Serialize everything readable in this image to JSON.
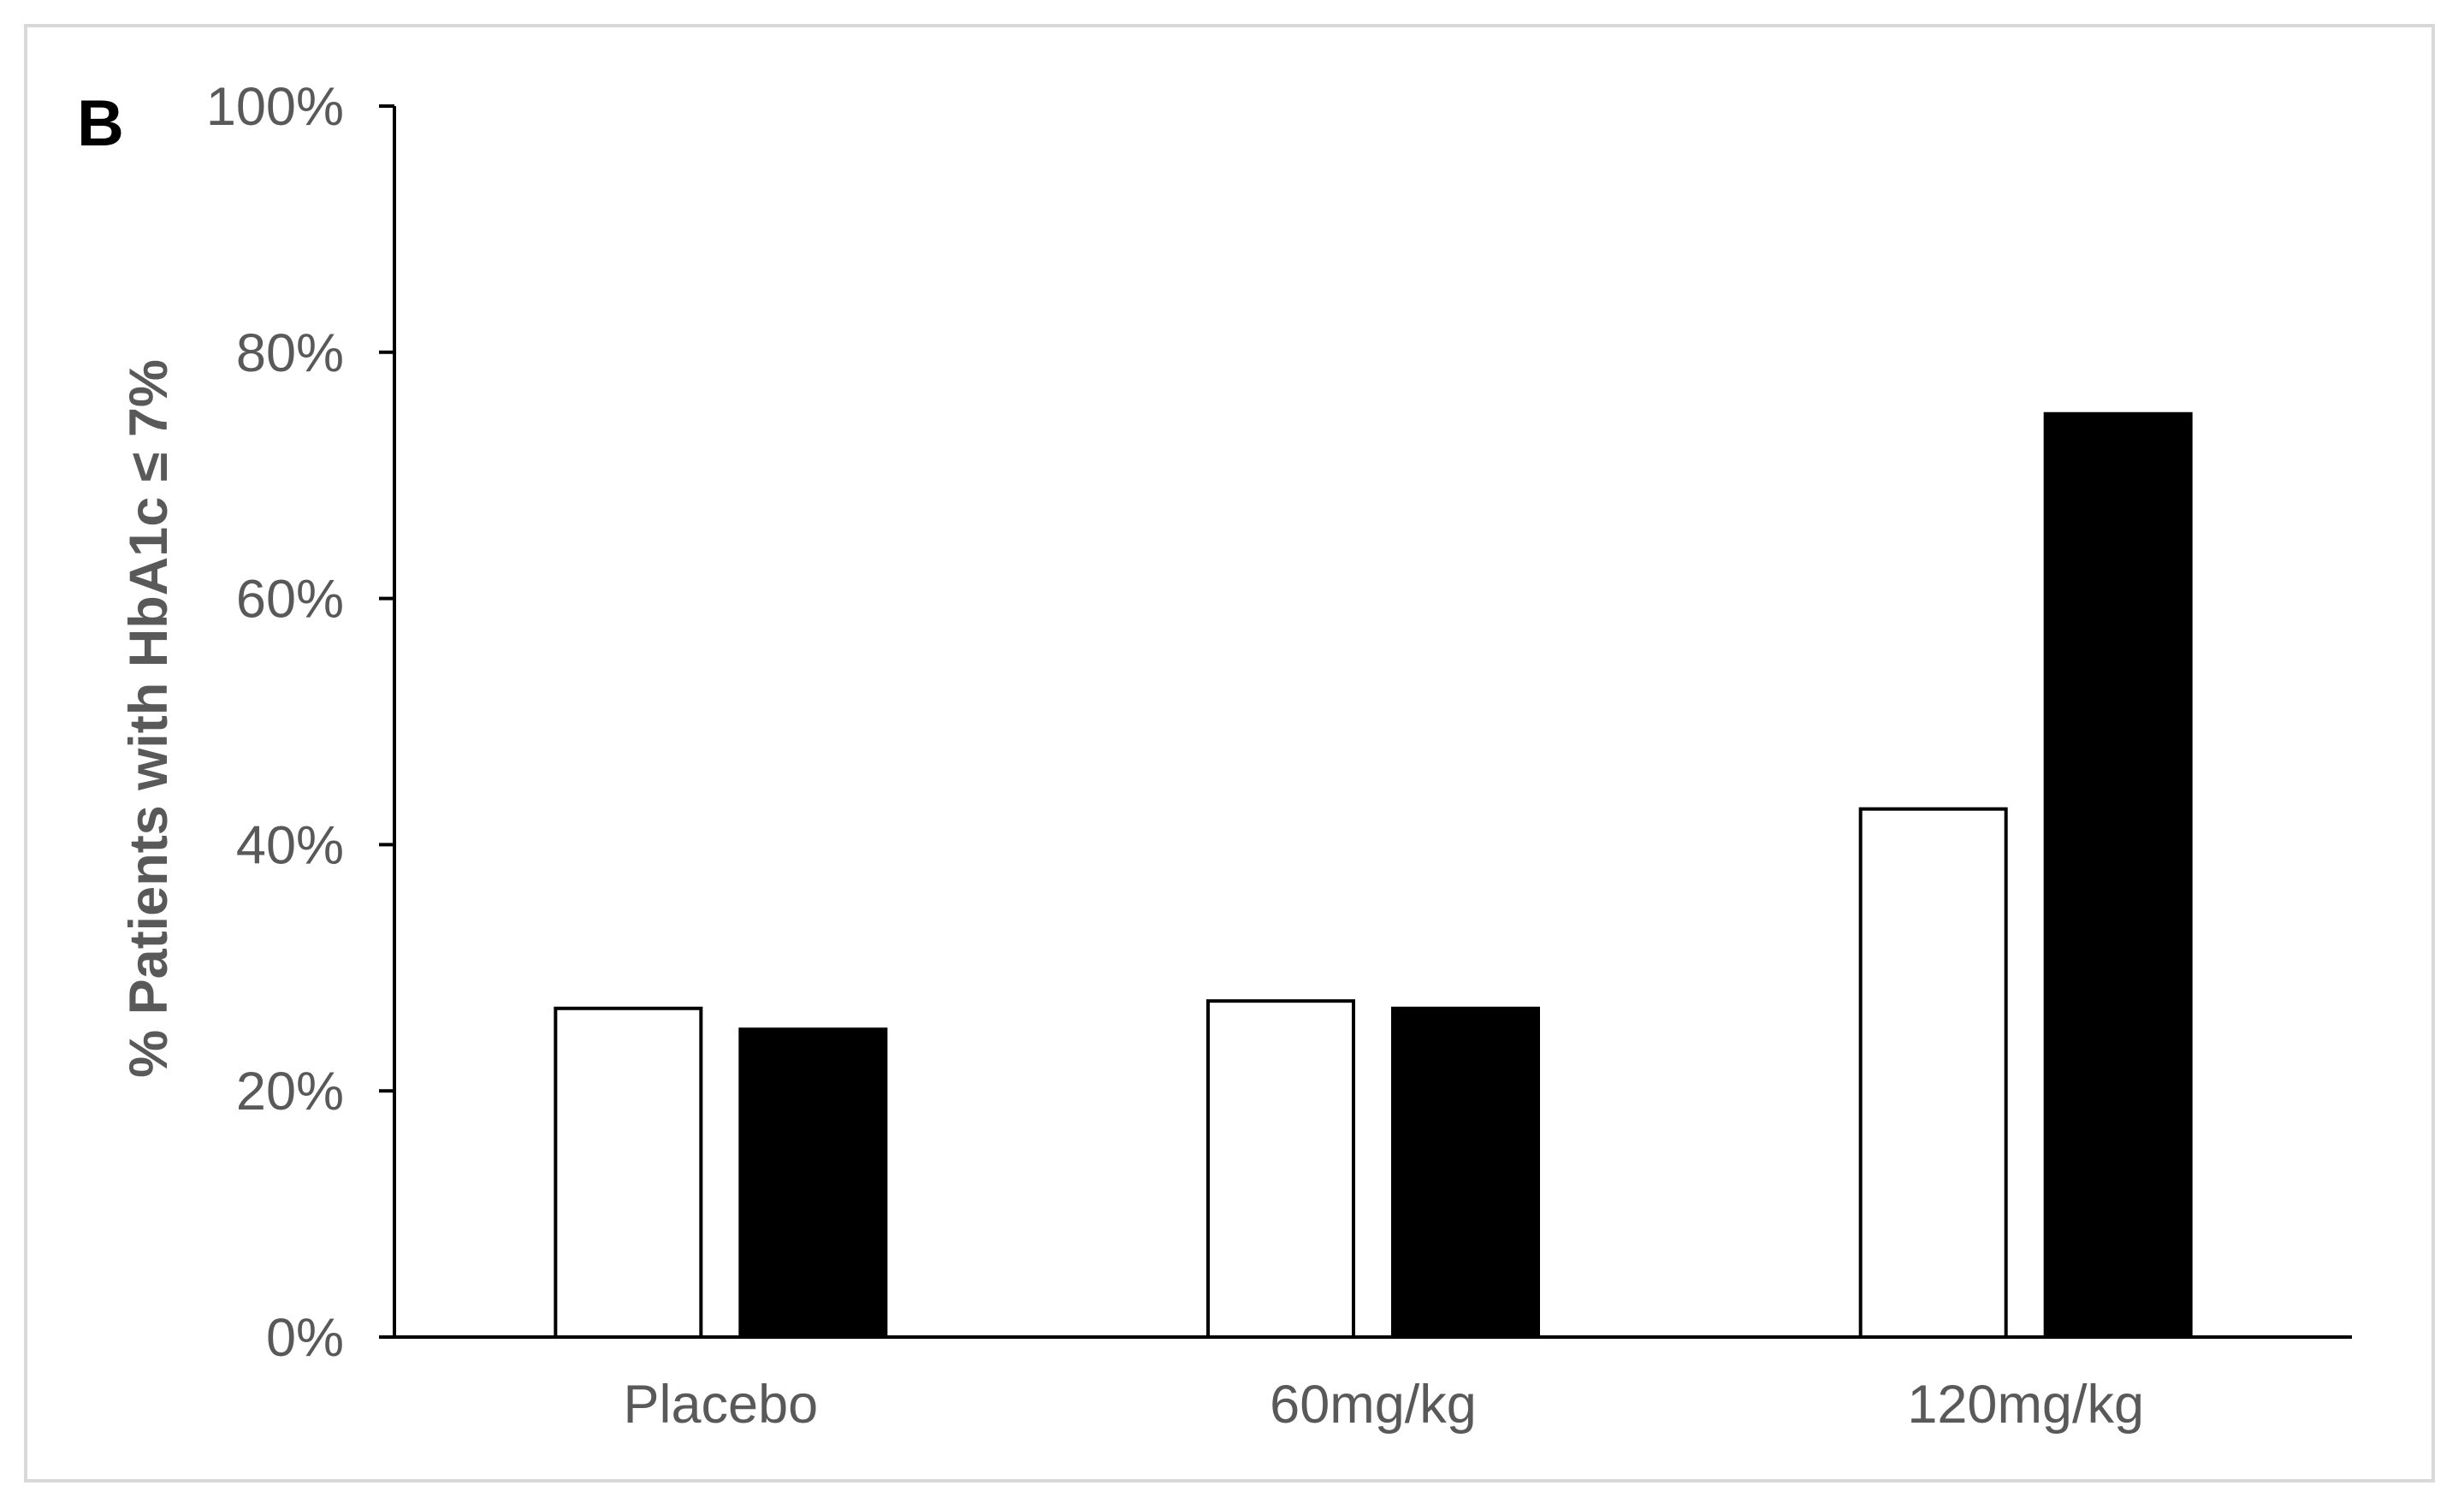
{
  "chart_data": {
    "type": "bar",
    "panel_label": "B",
    "ylabel": "% Patients with  HbA1c  ≤ 7%",
    "xlabel": "",
    "categories": [
      "Placebo",
      "60mg/kg",
      "120mg/kg"
    ],
    "yticks": [
      "0%",
      "20%",
      "40%",
      "60%",
      "80%",
      "100%"
    ],
    "ylim": [
      0,
      100
    ],
    "grid": false,
    "legend": "none",
    "series": [
      {
        "values": [
          26.7,
          27.3,
          42.9
        ],
        "color": "#ffffff",
        "stroke": "#000000"
      },
      {
        "values": [
          25.0,
          26.7,
          75.0
        ],
        "color": "#000000",
        "stroke": "#000000"
      }
    ]
  }
}
